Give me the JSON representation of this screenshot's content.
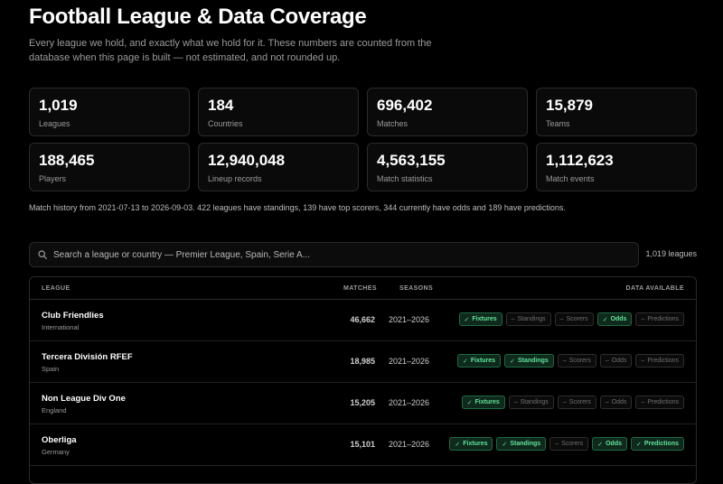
{
  "page": {
    "title": "Football League & Data Coverage",
    "subtitle": "Every league we hold, and exactly what we hold for it. These numbers are counted from the database when this page is built — not estimated, and not rounded up."
  },
  "stats": [
    {
      "value": "1,019",
      "label": "Leagues"
    },
    {
      "value": "184",
      "label": "Countries"
    },
    {
      "value": "696,402",
      "label": "Matches"
    },
    {
      "value": "15,879",
      "label": "Teams"
    },
    {
      "value": "188,465",
      "label": "Players"
    },
    {
      "value": "12,940,048",
      "label": "Lineup records"
    },
    {
      "value": "4,563,155",
      "label": "Match statistics"
    },
    {
      "value": "1,112,623",
      "label": "Match events"
    }
  ],
  "note": "Match history from 2021-07-13 to 2026-09-03. 422 leagues have standings, 139 have top scorers, 344 currently have odds and 189 have predictions.",
  "search": {
    "placeholder": "Search a league or country — Premier League, Spain, Serie A...",
    "count": "1,019 leagues"
  },
  "table": {
    "headers": {
      "league": "LEAGUE",
      "matches": "MATCHES",
      "seasons": "SEASONS",
      "data": "DATA AVAILABLE"
    },
    "rows": [
      {
        "name": "Club Friendlies",
        "region": "International",
        "matches": "46,662",
        "seasons": "2021–2026",
        "chips": [
          {
            "label": "Fixtures",
            "mark": "✓",
            "on": true
          },
          {
            "label": "Standings",
            "mark": "–",
            "on": false
          },
          {
            "label": "Scorers",
            "mark": "–",
            "on": false
          },
          {
            "label": "Odds",
            "mark": "✓",
            "on": true
          },
          {
            "label": "Predictions",
            "mark": "–",
            "on": false
          }
        ]
      },
      {
        "name": "Tercera División RFEF",
        "region": "Spain",
        "matches": "18,985",
        "seasons": "2021–2026",
        "chips": [
          {
            "label": "Fixtures",
            "mark": "✓",
            "on": true
          },
          {
            "label": "Standings",
            "mark": "✓",
            "on": true
          },
          {
            "label": "Scorers",
            "mark": "–",
            "on": false
          },
          {
            "label": "Odds",
            "mark": "–",
            "on": false
          },
          {
            "label": "Predictions",
            "mark": "–",
            "on": false
          }
        ]
      },
      {
        "name": "Non League Div One",
        "region": "England",
        "matches": "15,205",
        "seasons": "2021–2026",
        "chips": [
          {
            "label": "Fixtures",
            "mark": "✓",
            "on": true
          },
          {
            "label": "Standings",
            "mark": "–",
            "on": false
          },
          {
            "label": "Scorers",
            "mark": "–",
            "on": false
          },
          {
            "label": "Odds",
            "mark": "–",
            "on": false
          },
          {
            "label": "Predictions",
            "mark": "–",
            "on": false
          }
        ]
      },
      {
        "name": "Oberliga",
        "region": "Germany",
        "matches": "15,101",
        "seasons": "2021–2026",
        "chips": [
          {
            "label": "Fixtures",
            "mark": "✓",
            "on": true
          },
          {
            "label": "Standings",
            "mark": "✓",
            "on": true
          },
          {
            "label": "Scorers",
            "mark": "–",
            "on": false
          },
          {
            "label": "Odds",
            "mark": "✓",
            "on": true
          },
          {
            "label": "Predictions",
            "mark": "✓",
            "on": true
          }
        ]
      }
    ]
  },
  "colors": {
    "background": "#000000",
    "accent_on": "#5fe39a",
    "chip_on_bg": "#0f2a1c",
    "border": "#2a2a2a"
  }
}
